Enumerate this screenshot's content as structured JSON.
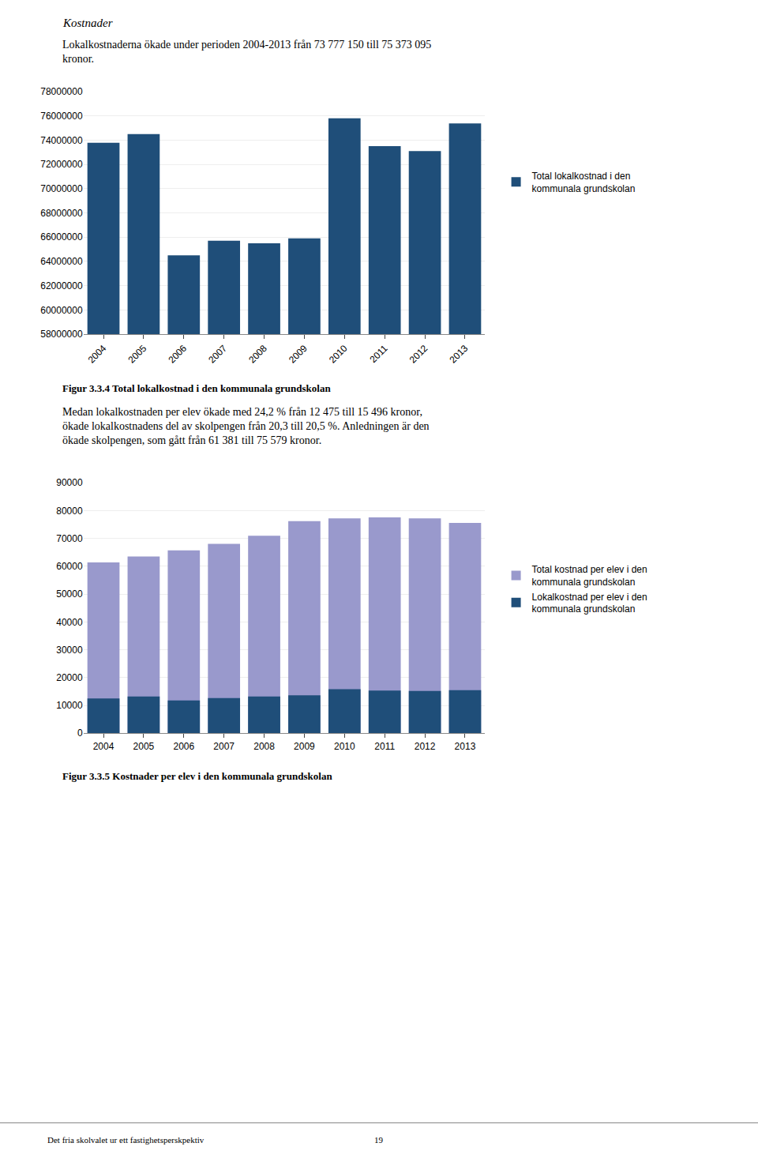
{
  "heading": "Kostnader",
  "intro": "Lokalkostnaderna ökade under perioden 2004-2013 från 73 777 150 till 75 373 095\nkronor.",
  "body": "Medan lokalkostnaden per elev ökade med 24,2 % från 12 475 till 15 496 kronor,\nökade lokalkostnadens del av skolpengen från 20,3 till 20,5 %. Anledningen är den\nökade skolpengen, som gått från 61 381 till 75 579 kronor.",
  "footer_left": "Det fria skolvalet ur ett fastighetsperskpektiv",
  "footer_right": "19",
  "chart_data": [
    {
      "type": "bar",
      "title": "Figur 3.3.4 Total lokalkostnad i den kommunala grundskolan",
      "categories": [
        "2004",
        "2005",
        "2006",
        "2007",
        "2008",
        "2009",
        "2010",
        "2011",
        "2012",
        "2013"
      ],
      "series": [
        {
          "name": "Total lokalkostnad i den\nkommunala grundskolan",
          "color": "#1F4E79",
          "values": [
            73777150,
            74500000,
            64500000,
            65700000,
            65500000,
            65900000,
            75800000,
            73500000,
            73100000,
            75373095
          ]
        }
      ],
      "ylim": [
        58000000,
        78000000
      ],
      "yticks": [
        58000000,
        60000000,
        62000000,
        64000000,
        66000000,
        68000000,
        70000000,
        72000000,
        74000000,
        76000000,
        78000000
      ],
      "grid": true,
      "legend": "right"
    },
    {
      "type": "bar",
      "title": "Figur 3.3.5 Kostnader per elev i den kommunala grundskolan",
      "categories": [
        "2004",
        "2005",
        "2006",
        "2007",
        "2008",
        "2009",
        "2010",
        "2011",
        "2012",
        "2013"
      ],
      "series": [
        {
          "name": "Total kostnad per elev i den\nkommunala grundskolan",
          "color": "#9999CC",
          "values": [
            61381,
            63500,
            65700,
            68100,
            71000,
            76200,
            77200,
            77600,
            77200,
            75579
          ]
        },
        {
          "name": "Lokalkostnad per elev i den\nkommunala grundskolan",
          "color": "#1F4E79",
          "values": [
            12475,
            13200,
            11800,
            12600,
            13200,
            13600,
            15800,
            15300,
            15200,
            15496
          ]
        }
      ],
      "ylim": [
        0,
        90000
      ],
      "yticks": [
        0,
        10000,
        20000,
        30000,
        40000,
        50000,
        60000,
        70000,
        80000,
        90000
      ],
      "grid": true,
      "stacked": false,
      "legend": "right"
    }
  ]
}
